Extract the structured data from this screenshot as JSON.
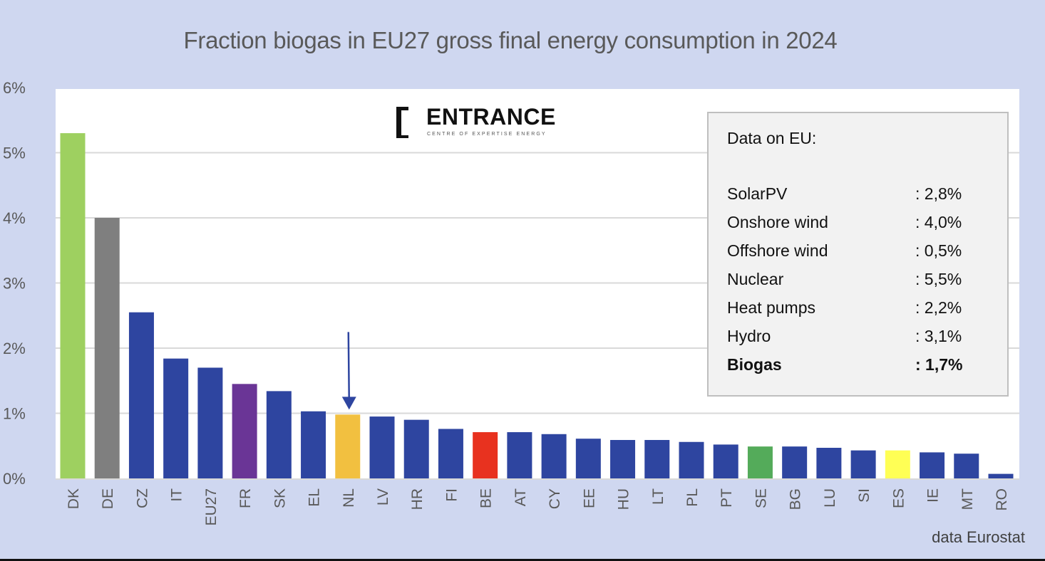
{
  "chart_data": {
    "type": "bar",
    "title": "Fraction biogas in EU27 gross final energy consumption in 2024",
    "xlabel": "",
    "ylabel": "",
    "ylim": [
      0,
      6
    ],
    "yticks": [
      "0%",
      "1%",
      "2%",
      "3%",
      "4%",
      "5%",
      "6%"
    ],
    "ytick_values": [
      0,
      1,
      2,
      3,
      4,
      5,
      6
    ],
    "grid": true,
    "unit": "%",
    "categories": [
      "DK",
      "DE",
      "CZ",
      "IT",
      "EU27",
      "FR",
      "SK",
      "EL",
      "NL",
      "LV",
      "HR",
      "FI",
      "BE",
      "AT",
      "CY",
      "EE",
      "HU",
      "LT",
      "PL",
      "PT",
      "SE",
      "BG",
      "LU",
      "SI",
      "ES",
      "IE",
      "MT",
      "RO"
    ],
    "values": [
      5.3,
      4.0,
      2.55,
      1.84,
      1.7,
      1.45,
      1.34,
      1.03,
      0.98,
      0.95,
      0.9,
      0.76,
      0.71,
      0.71,
      0.68,
      0.61,
      0.59,
      0.59,
      0.56,
      0.52,
      0.49,
      0.49,
      0.47,
      0.43,
      0.43,
      0.4,
      0.38,
      0.07
    ],
    "colors": [
      "#9ed060",
      "#7f7f7f",
      "#2e45a0",
      "#2e45a0",
      "#2e45a0",
      "#6a3596",
      "#2e45a0",
      "#2e45a0",
      "#f2c040",
      "#2e45a0",
      "#2e45a0",
      "#2e45a0",
      "#e8321f",
      "#2e45a0",
      "#2e45a0",
      "#2e45a0",
      "#2e45a0",
      "#2e45a0",
      "#2e45a0",
      "#2e45a0",
      "#54ab5a",
      "#2e45a0",
      "#2e45a0",
      "#2e45a0",
      "#ffff55",
      "#2e45a0",
      "#2e45a0",
      "#2e45a0"
    ],
    "annotations": [
      {
        "type": "arrow",
        "target": "NL",
        "color": "#2e45a0"
      }
    ],
    "source": "data Eurostat"
  },
  "logo": {
    "name": "ENTRANCE",
    "subtitle": "CENTRE OF EXPERTISE ENERGY"
  },
  "info_box": {
    "title": "Data on EU:",
    "rows": [
      {
        "label": "SolarPV",
        "value": ": 2,8%",
        "bold": false
      },
      {
        "label": "Onshore wind",
        "value": ": 4,0%",
        "bold": false
      },
      {
        "label": "Offshore wind",
        "value": ": 0,5%",
        "bold": false
      },
      {
        "label": "Nuclear",
        "value": ": 5,5%",
        "bold": false
      },
      {
        "label": "Heat pumps",
        "value": ": 2,2%",
        "bold": false
      },
      {
        "label": "Hydro",
        "value": ": 3,1%",
        "bold": false
      },
      {
        "label": "Biogas",
        "value": ": 1,7%",
        "bold": true
      }
    ]
  }
}
